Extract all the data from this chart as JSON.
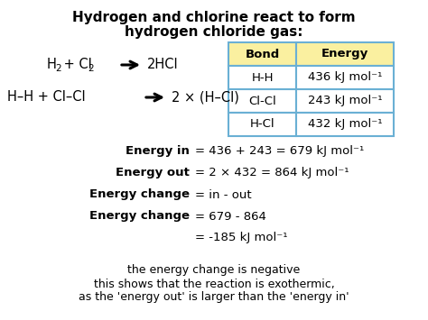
{
  "title_line1": "Hydrogen and chlorine react to form",
  "title_line2": "hydrogen chloride gas:",
  "bg_color": "#ffffff",
  "table_header_bg": "#faf0a0",
  "table_border_color": "#6ab0d4",
  "table_header_text": [
    "Bond",
    "Energy"
  ],
  "table_rows": [
    [
      "H-H",
      "436 kJ mol⁻¹"
    ],
    [
      "Cl-Cl",
      "243 kJ mol⁻¹"
    ],
    [
      "H-Cl",
      "432 kJ mol⁻¹"
    ]
  ],
  "energy_in_bold": "Energy in",
  "energy_in_val": "= 436 + 243 = 679 kJ mol⁻¹",
  "energy_out_bold": "Energy out",
  "energy_out_val": "= 2 × 432 = 864 kJ mol⁻¹",
  "energy_change1_bold": "Energy change",
  "energy_change1_val": "= in - out",
  "energy_change2_bold": "Energy change",
  "energy_change2_val": "= 679 - 864",
  "energy_final": "= -185 kJ mol⁻¹",
  "conclusion_line1": "the energy change is negative",
  "conclusion_line2": "this shows that the reaction is exothermic,",
  "conclusion_line3": "as the 'energy out' is larger than the 'energy in'"
}
